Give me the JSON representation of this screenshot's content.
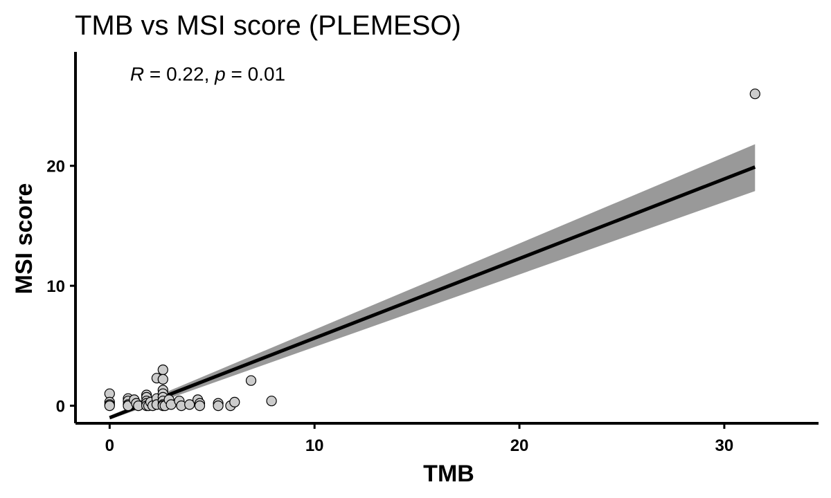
{
  "chart_data": {
    "type": "scatter",
    "title": "TMB vs MSI score (PLEMESO)",
    "xlabel": "TMB",
    "ylabel": "MSI score",
    "xlim": [
      -1.6,
      34.6
    ],
    "ylim": [
      -1.35,
      29.5
    ],
    "x_ticks": [
      0,
      10,
      20,
      30
    ],
    "y_ticks": [
      0,
      10,
      20
    ],
    "grid": false,
    "legend": "none",
    "annotation": {
      "r_symbol": "R",
      "r_text": " = 0.22, ",
      "p_symbol": "p",
      "p_text": " = 0.01",
      "x": 1.0,
      "y": 27.1
    },
    "colors": {
      "point_fill": "#cccccc",
      "point_stroke": "#000000",
      "line": "#000000",
      "band": "#999999"
    },
    "regression": {
      "x": [
        0,
        31.5
      ],
      "y": [
        -1.0,
        19.9
      ],
      "ci_upper": [
        -0.85,
        21.8
      ],
      "ci_lower": [
        -1.15,
        17.9
      ]
    },
    "points": [
      {
        "x": 0.0,
        "y": 1.0
      },
      {
        "x": 0.0,
        "y": 0.3
      },
      {
        "x": 0.0,
        "y": 0.1
      },
      {
        "x": 0.0,
        "y": 0.0
      },
      {
        "x": 0.9,
        "y": 0.6
      },
      {
        "x": 0.9,
        "y": 0.4
      },
      {
        "x": 0.9,
        "y": 0.1
      },
      {
        "x": 0.9,
        "y": 0.0
      },
      {
        "x": 1.2,
        "y": 0.5
      },
      {
        "x": 1.3,
        "y": 0.2
      },
      {
        "x": 1.4,
        "y": 0.0
      },
      {
        "x": 1.8,
        "y": 0.9
      },
      {
        "x": 1.8,
        "y": 0.7
      },
      {
        "x": 1.8,
        "y": 0.4
      },
      {
        "x": 1.8,
        "y": 0.2
      },
      {
        "x": 1.8,
        "y": 0.0
      },
      {
        "x": 1.9,
        "y": 0.0
      },
      {
        "x": 2.0,
        "y": 0.3
      },
      {
        "x": 2.1,
        "y": 0.0
      },
      {
        "x": 2.3,
        "y": 2.3
      },
      {
        "x": 2.3,
        "y": 0.6
      },
      {
        "x": 2.3,
        "y": 0.1
      },
      {
        "x": 2.6,
        "y": 3.0
      },
      {
        "x": 2.6,
        "y": 2.2
      },
      {
        "x": 2.6,
        "y": 1.3
      },
      {
        "x": 2.6,
        "y": 1.0
      },
      {
        "x": 2.6,
        "y": 0.7
      },
      {
        "x": 2.6,
        "y": 0.4
      },
      {
        "x": 2.6,
        "y": 0.1
      },
      {
        "x": 2.6,
        "y": 0.0
      },
      {
        "x": 2.7,
        "y": 0.0
      },
      {
        "x": 2.9,
        "y": 0.5
      },
      {
        "x": 3.0,
        "y": 0.1
      },
      {
        "x": 3.4,
        "y": 0.4
      },
      {
        "x": 3.5,
        "y": 0.0
      },
      {
        "x": 3.9,
        "y": 0.1
      },
      {
        "x": 4.3,
        "y": 0.5
      },
      {
        "x": 4.4,
        "y": 0.2
      },
      {
        "x": 4.4,
        "y": 0.0
      },
      {
        "x": 5.3,
        "y": 0.2
      },
      {
        "x": 5.3,
        "y": 0.0
      },
      {
        "x": 5.9,
        "y": 0.0
      },
      {
        "x": 6.1,
        "y": 0.3
      },
      {
        "x": 6.9,
        "y": 2.1
      },
      {
        "x": 7.9,
        "y": 0.4
      },
      {
        "x": 31.5,
        "y": 26.0
      }
    ]
  }
}
